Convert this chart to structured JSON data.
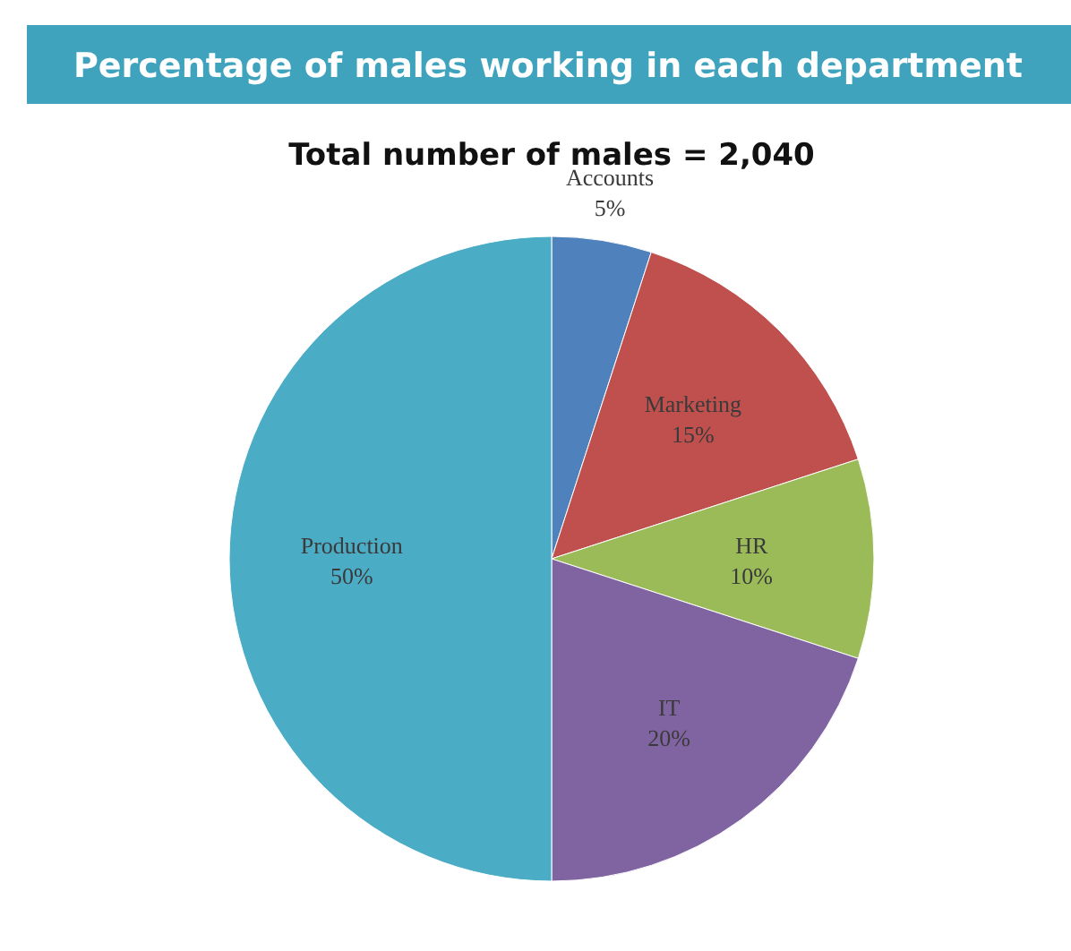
{
  "chart_data": {
    "type": "pie",
    "title": "Percentage of males working in each department",
    "subtitle": "Total number of males = 2,040",
    "categories": [
      "Accounts",
      "Marketing",
      "HR",
      "IT",
      "Production"
    ],
    "values": [
      5,
      15,
      10,
      20,
      50
    ],
    "value_labels": [
      "5%",
      "15%",
      "10%",
      "20%",
      "50%"
    ],
    "colors": [
      "#4f81bd",
      "#c0504d",
      "#9bbb59",
      "#8064a2",
      "#4bacc6"
    ]
  }
}
